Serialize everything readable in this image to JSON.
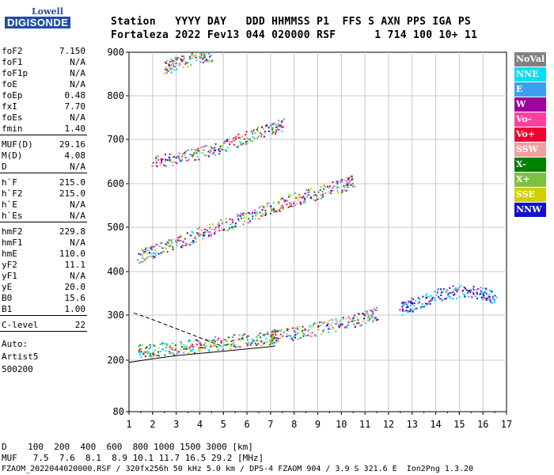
{
  "logo": {
    "top": "Lowell",
    "main": "DIGISONDE"
  },
  "header": {
    "line1": "Station   YYYY DAY   DDD HHMMSS P1  FFS S AXN PPS IGA PS",
    "line2": "Fortaleza 2022 Fev13 044 020000 RSF      1 714 100 10+ 11"
  },
  "params": [
    {
      "label": "foF2",
      "value": "7.150"
    },
    {
      "label": "foF1",
      "value": "N/A"
    },
    {
      "label": "foF1p",
      "value": "N/A"
    },
    {
      "label": "foE",
      "value": "N/A"
    },
    {
      "label": "foEp",
      "value": "0.48"
    },
    {
      "label": "fxI",
      "value": "7.70"
    },
    {
      "label": "foEs",
      "value": "N/A"
    },
    {
      "label": "fmin",
      "value": "1.40"
    },
    {
      "label": "MUF(D)",
      "value": "29.16"
    },
    {
      "label": "M(D)",
      "value": "4.08"
    },
    {
      "label": "D",
      "value": "N/A"
    },
    {
      "label": "h`F",
      "value": "215.0"
    },
    {
      "label": "h`F2",
      "value": "215.0"
    },
    {
      "label": "h`E",
      "value": "N/A"
    },
    {
      "label": "h`Es",
      "value": "N/A"
    },
    {
      "label": "hmF2",
      "value": "229.8"
    },
    {
      "label": "hmF1",
      "value": "N/A"
    },
    {
      "label": "hmE",
      "value": "110.0"
    },
    {
      "label": "yF2",
      "value": "11.1"
    },
    {
      "label": "yF1",
      "value": "N/A"
    },
    {
      "label": "yE",
      "value": "20.0"
    },
    {
      "label": "B0",
      "value": "15.6"
    },
    {
      "label": "B1",
      "value": "1.00"
    },
    {
      "label": "C-level",
      "value": "22"
    }
  ],
  "auto": {
    "line1": "Auto:",
    "line2": "Artist5",
    "line3": "500200"
  },
  "legend": [
    {
      "label": "NoVal",
      "color": "#808080"
    },
    {
      "label": "NNE",
      "color": "#00e0f0"
    },
    {
      "label": "E",
      "color": "#3aa0f0"
    },
    {
      "label": "W",
      "color": "#a000a0"
    },
    {
      "label": "Vo-",
      "color": "#ff40a0"
    },
    {
      "label": "Vo+",
      "color": "#f00030"
    },
    {
      "label": "SSW",
      "color": "#f0a0a0"
    },
    {
      "label": "X-",
      "color": "#008000"
    },
    {
      "label": "X+",
      "color": "#80c040"
    },
    {
      "label": "SSE",
      "color": "#d0d000"
    },
    {
      "label": "NNW",
      "color": "#1010d0"
    }
  ],
  "chart_data": {
    "type": "scatter",
    "xlim": [
      1,
      17
    ],
    "ylim": [
      80,
      900
    ],
    "x_ticks": [
      "1",
      "2",
      "3",
      "4",
      "5",
      "6",
      "7",
      "8",
      "9",
      "10",
      "11",
      "12",
      "13",
      "14",
      "15",
      "16",
      "17"
    ],
    "y_ticks": [
      "80",
      "200",
      "300",
      "400",
      "500",
      "600",
      "700",
      "800",
      "900"
    ],
    "y_tick_values": [
      80,
      200,
      300,
      400,
      500,
      600,
      700,
      800,
      900
    ],
    "grid": true,
    "traces": [
      {
        "name": "O-trace F2 1st hop",
        "x": [
          1.4,
          2,
          3,
          4,
          5,
          6,
          7,
          7.15
        ],
        "y": [
          215,
          218,
          222,
          228,
          235,
          240,
          245,
          248
        ]
      },
      {
        "name": "2nd hop",
        "x": [
          1.4,
          2,
          3,
          4,
          5,
          6,
          7,
          8,
          9,
          10,
          10.5
        ],
        "y": [
          430,
          440,
          460,
          480,
          500,
          520,
          540,
          560,
          575,
          590,
          600
        ]
      },
      {
        "name": "3rd hop",
        "x": [
          2,
          3,
          4,
          5,
          6,
          7,
          7.5
        ],
        "y": [
          645,
          650,
          665,
          680,
          700,
          720,
          730
        ]
      },
      {
        "name": "4th hop",
        "x": [
          2.5,
          3,
          4,
          4.5
        ],
        "y": [
          860,
          870,
          885,
          890
        ]
      },
      {
        "name": "X-trace",
        "x": [
          7,
          8,
          9,
          10,
          11,
          11.5
        ],
        "y": [
          245,
          255,
          265,
          275,
          290,
          300
        ]
      },
      {
        "name": "NE cluster",
        "x": [
          12.5,
          13,
          14,
          15,
          16,
          16.5
        ],
        "y": [
          310,
          320,
          340,
          350,
          345,
          335
        ]
      }
    ],
    "model_curves": [
      {
        "name": "profile",
        "x": [
          1,
          2,
          3,
          4,
          5,
          6,
          7,
          7.2
        ],
        "y": [
          195,
          203,
          210,
          215,
          220,
          225,
          230,
          232
        ]
      },
      {
        "name": "dashed",
        "x": [
          1.2,
          2,
          3,
          4,
          5
        ],
        "y": [
          305,
          290,
          270,
          250,
          230
        ]
      }
    ]
  },
  "footer": {
    "line1": "D    100  200  400  600  800 1000 1500 3000 [km]",
    "line2": "MUF   7.5  7.6  8.1  8.9 10.1 11.7 16.5 29.2 [MHz]",
    "line3": "FZAOM_2022044020000.RSF / 320fx256h 50 kHz 5.0 km / DPS-4 FZAOM 904 / 3.9 S 321.6 E  Ion2Png 1.3.20"
  }
}
